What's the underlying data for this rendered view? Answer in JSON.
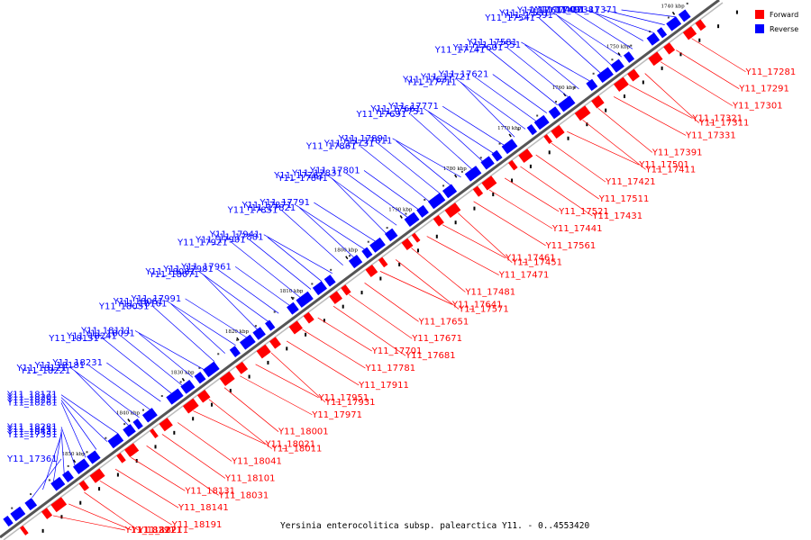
{
  "colors": {
    "forward": "#ff0000",
    "reverse": "#0000ff",
    "backbone": "#555555"
  },
  "legend": {
    "forward": "Forward",
    "reverse": "Reverse"
  },
  "caption": "Yersinia enterocolitica subsp. palearctica Y11. - 0..4553420",
  "ticks": [
    "1740 kbp",
    "1750 kbp",
    "1760 kbp",
    "1770 kbp",
    "1780 kbp",
    "1790 kbp",
    "1800 kbp",
    "1810 kbp",
    "1820 kbp",
    "1830 kbp",
    "1840 kbp",
    "1850 kbp"
  ],
  "reverse_labels": [
    "Y11_17371",
    "Y11_17381",
    "Y11_17401",
    "Y11_17491",
    "Y11_17611",
    "Y11_17531",
    "Y11_17591",
    "Y11_17541",
    "Y11_17581",
    "Y11_17551",
    "Y11_17601",
    "Y11_17741",
    "Y11_17621",
    "Y11_17721",
    "Y11_17631",
    "Y11_17711",
    "Y11_17771",
    "Y11_17661",
    "Y11_17751",
    "Y11_17691",
    "Y11_17891",
    "Y11_17811",
    "Y11_17731",
    "Y11_17861",
    "Y11_17801",
    "Y11_17831",
    "Y11_17761",
    "Y11_17841",
    "Y11_17791",
    "Y11_17871",
    "Y11_17821",
    "Y11_17851",
    "Y11_17941",
    "Y11_17881",
    "Y11_17901",
    "Y11_17921",
    "Y11_17961",
    "Y11_17981",
    "Y11_18081",
    "Y11_18071",
    "Y11_17991",
    "Y11_18061",
    "Y11_18161",
    "Y11_18051",
    "Y11_18111",
    "Y11_18091",
    "Y11_18241",
    "Y11_18151",
    "Y11_18231",
    "Y11_18181",
    "Y11_18121",
    "Y11_18221",
    "Y11_18171",
    "Y11_18201",
    "Y11_18251",
    "Y11_18261",
    "Y11_18281",
    "Y11_18411",
    "Y11_18431",
    "Y11_17351",
    "Y11_17361"
  ],
  "forward_labels": [
    "Y11_17281",
    "Y11_17291",
    "Y11_17301",
    "Y11_17311",
    "Y11_17321",
    "Y11_17331",
    "Y11_17391",
    "Y11_17411",
    "Y11_17501",
    "Y11_17421",
    "Y11_17511",
    "Y11_17431",
    "Y11_17521",
    "Y11_17441",
    "Y11_17561",
    "Y11_17451",
    "Y11_17461",
    "Y11_17471",
    "Y11_17481",
    "Y11_17571",
    "Y11_17641",
    "Y11_17651",
    "Y11_17671",
    "Y11_17681",
    "Y11_17701",
    "Y11_17781",
    "Y11_17911",
    "Y11_17931",
    "Y11_17951",
    "Y11_17971",
    "Y11_18001",
    "Y11_18011",
    "Y11_18021",
    "Y11_18041",
    "Y11_18101",
    "Y11_18031",
    "Y11_18131",
    "Y11_18141",
    "Y11_18191",
    "Y11_18211",
    "Y11_18271",
    "Y11_18291"
  ]
}
